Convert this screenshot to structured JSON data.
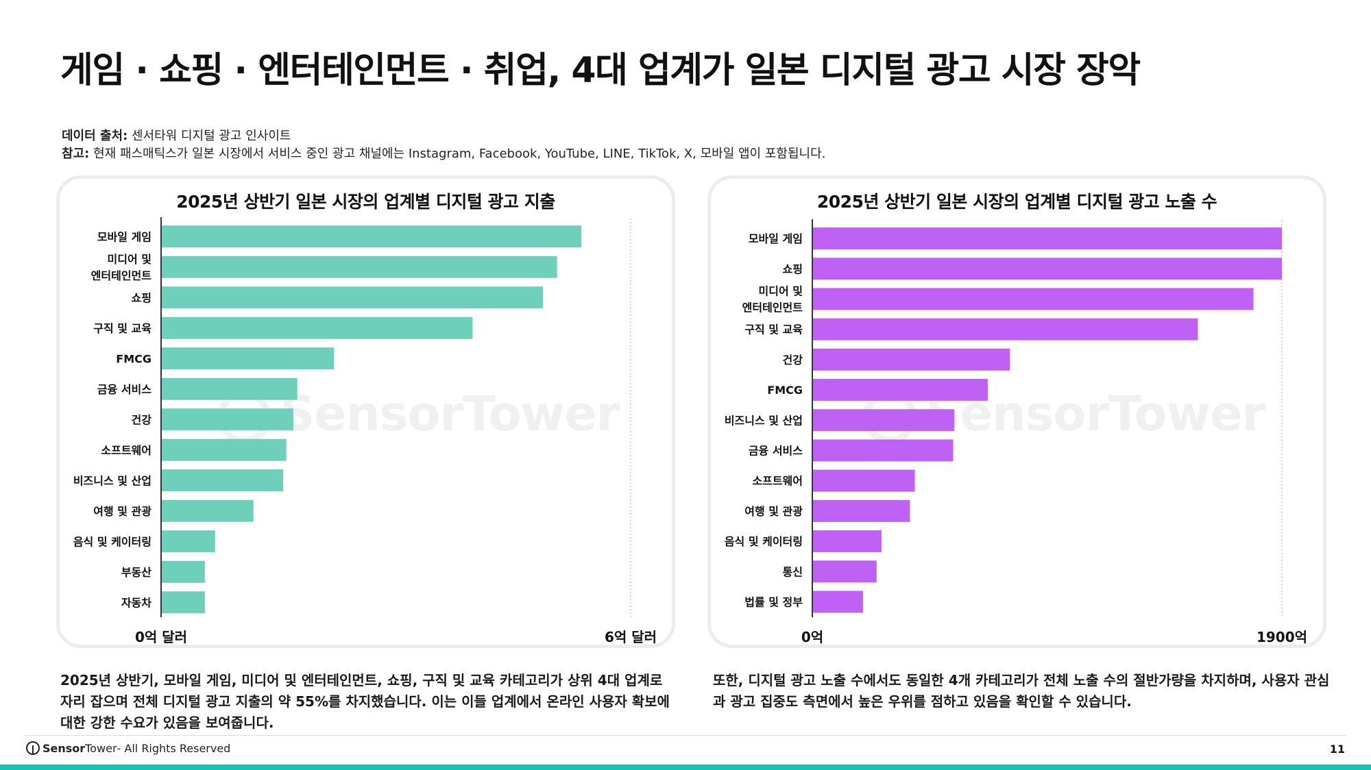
{
  "title": "게임 · 쇼핑 · 엔터테인먼트 · 취업, 4대 업계가 일본 디지털 광고 시장 장악",
  "notes": {
    "source_label": "데이터 출처:",
    "source_text": "센서타워 디지털 광고 인사이트",
    "note_label": "참고:",
    "note_text": "현재 패스매틱스가 일본 시장에서 서비스 중인 광고 채널에는 Instagram, Facebook, YouTube, LINE, TikTok, X, 모바일 앱이 포함됩니다."
  },
  "watermark": "SensorTower",
  "chart_data": [
    {
      "type": "bar",
      "orientation": "horizontal",
      "title": "2025년 상반기 일본 시장의 업계별 디지털 광고 지출",
      "categories": [
        "모바일 게임",
        "미디어 및\n엔터테인먼트",
        "쇼핑",
        "구직 및 교육",
        "FMCG",
        "금융 서비스",
        "건강",
        "소프트웨어",
        "비즈니스 및 산업",
        "여행 및 관광",
        "음식 및 케이터링",
        "부동산",
        "자동차"
      ],
      "values": [
        5.37,
        5.06,
        4.88,
        3.98,
        2.21,
        1.74,
        1.69,
        1.6,
        1.56,
        1.18,
        0.69,
        0.56,
        0.56
      ],
      "unit": "억 달러",
      "xlim": [
        0,
        6
      ],
      "xtick_labels": [
        "0억 달러",
        "6억 달러"
      ],
      "color": "#6ecfbb",
      "gridline": "dotted at max"
    },
    {
      "type": "bar",
      "orientation": "horizontal",
      "title": "2025년 상반기 일본 시장의 업계별 디지털 광고 노출 수",
      "categories": [
        "모바일 게임",
        "쇼핑",
        "미디어 및\n엔터테인먼트",
        "구직 및 교육",
        "건강",
        "FMCG",
        "비즈니스 및 산업",
        "금융 서비스",
        "소프트웨어",
        "여행 및 관광",
        "음식 및 케이터링",
        "통신",
        "법률 및 정부"
      ],
      "values": [
        1900,
        1900,
        1785,
        1560,
        800,
        710,
        575,
        570,
        415,
        395,
        280,
        260,
        205
      ],
      "unit": "억",
      "xlim": [
        0,
        1900
      ],
      "xtick_labels": [
        "0억",
        "1900억"
      ],
      "color": "#c061f5",
      "gridline": "dotted at max"
    }
  ],
  "descriptions": {
    "left": "2025년 상반기, 모바일 게임, 미디어 및 엔터테인먼트, 쇼핑, 구직 및 교육 카테고리가 상위 4대 업계로 자리 잡으며 전체 디지털 광고 지출의 약 55%를 차지했습니다. 이는 이들 업계에서 온라인 사용자 확보에 대한 강한 수요가 있음을 보여줍니다.",
    "right": "또한, 디지털 광고 노출 수에서도 동일한 4개 카테고리가 전체 노출 수의 절반가량을 차지하며, 사용자 관심과 광고 집중도 측면에서 높은 우위를 점하고 있음을 확인할 수 있습니다."
  },
  "footer": {
    "brand_a": "Sensor",
    "brand_b": "Tower",
    "rights": " - All Rights Reserved",
    "page": "11"
  }
}
